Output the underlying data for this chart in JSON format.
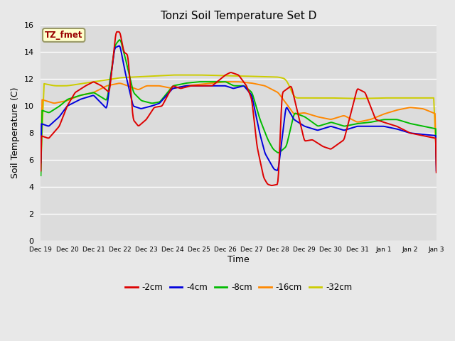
{
  "title": "Tonzi Soil Temperature Set D",
  "xlabel": "Time",
  "ylabel": "Soil Temperature (C)",
  "ylim": [
    0,
    16
  ],
  "yticks": [
    0,
    2,
    4,
    6,
    8,
    10,
    12,
    14,
    16
  ],
  "bg_color": "#e8e8e8",
  "plot_bg_color": "#dcdcdc",
  "grid_color": "#ffffff",
  "legend_label": "TZ_fmet",
  "legend_bg": "#ffffcc",
  "legend_border": "#999966",
  "series_colors": {
    "-2cm": "#dd0000",
    "-4cm": "#0000dd",
    "-8cm": "#00bb00",
    "-16cm": "#ff8800",
    "-32cm": "#cccc00"
  },
  "tick_labels": [
    "Dec 19",
    "Dec 20",
    "Dec 21",
    "Dec 22",
    "Dec 23",
    "Dec 24",
    "Dec 25",
    "Dec 26",
    "Dec 27",
    "Dec 28",
    "Dec 29",
    "Dec 30",
    "Dec 31",
    "Jan 1",
    "Jan 2",
    "Jan 3"
  ]
}
